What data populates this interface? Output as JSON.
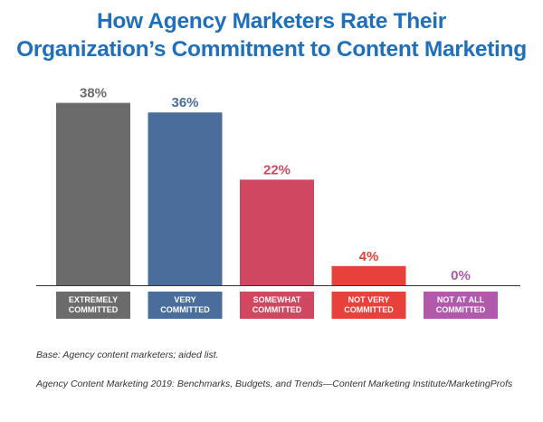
{
  "title_line1": "How Agency Marketers Rate Their",
  "title_line2": "Organization’s Commitment to Content Marketing",
  "base_note": "Base: Agency content marketers; aided list.",
  "source_note": "Agency Content Marketing 2019: Benchmarks, Budgets, and Trends—Content Marketing Institute/MarketingProfs",
  "chart_data": {
    "type": "bar",
    "categories": [
      [
        "EXTREMELY",
        "COMMITTED"
      ],
      [
        "VERY",
        "COMMITTED"
      ],
      [
        "SOMEWHAT",
        "COMMITTED"
      ],
      [
        "NOT VERY",
        "COMMITTED"
      ],
      [
        "NOT AT ALL",
        "COMMITTED"
      ]
    ],
    "values": [
      38,
      36,
      22,
      4,
      0
    ],
    "value_labels": [
      "38%",
      "36%",
      "22%",
      "4%",
      "0%"
    ],
    "colors": [
      "#6b6b6b",
      "#4a6d9c",
      "#cf4760",
      "#e8403a",
      "#b15aac"
    ],
    "ylim": [
      0,
      40
    ],
    "grid": false
  }
}
